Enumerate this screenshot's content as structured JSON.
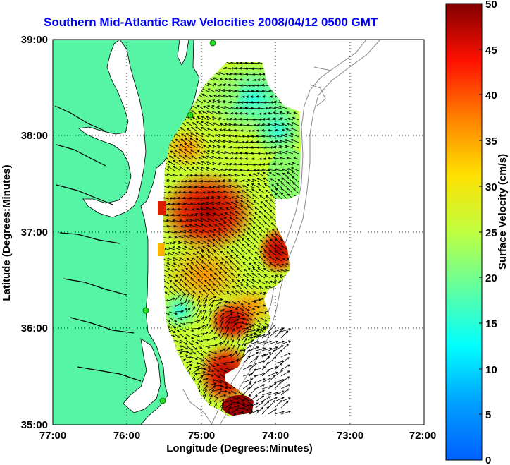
{
  "title": "Southern Mid-Atlantic Raw Velocities 2008/04/12 0500 GMT",
  "x_axis": {
    "label": "Longitude (Degrees:Minutes)",
    "ticks": [
      "77:00",
      "76:00",
      "75:00",
      "74:00",
      "73:00",
      "72:00"
    ]
  },
  "y_axis": {
    "label": "Latitude (Degrees:Minutes)",
    "ticks": [
      "39:00",
      "38:00",
      "37:00",
      "36:00",
      "35:00"
    ]
  },
  "colorbar": {
    "label": "Surface Velocity (cm/s)",
    "ticks": [
      "50",
      "45",
      "40",
      "35",
      "30",
      "25",
      "20",
      "15",
      "10",
      "5",
      "0"
    ],
    "range": [
      0,
      50
    ],
    "colormap": "jet"
  },
  "colors": {
    "land": "#55f5a5",
    "title": "#0000ff",
    "station": "#22dd22"
  },
  "map": {
    "lon_range": [
      -77,
      -72
    ],
    "lat_range": [
      35,
      39
    ],
    "grid": "dotted",
    "stations": 4
  }
}
